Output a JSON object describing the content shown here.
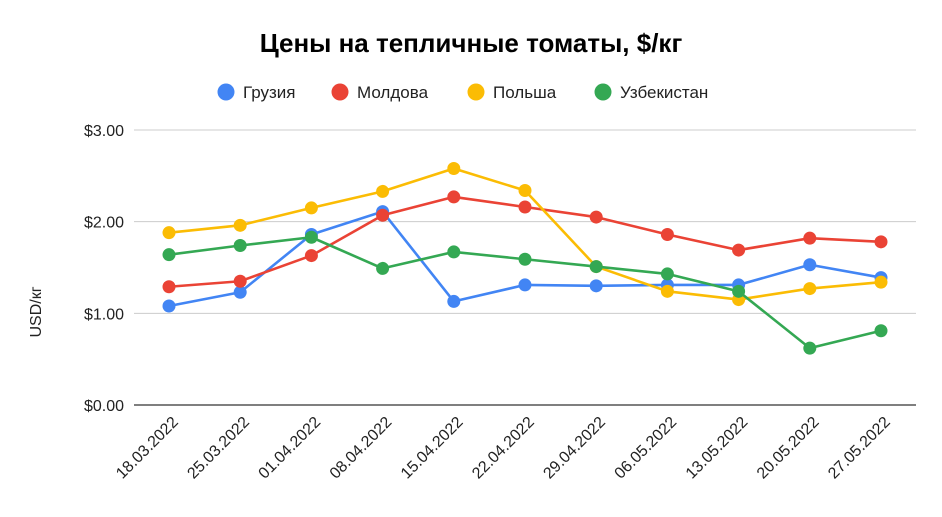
{
  "chart_data": {
    "type": "line",
    "title": "Цены на тепличные томаты, $/кг",
    "ylabel": "USD/кг",
    "xlabel": "",
    "categories": [
      "18.03.2022",
      "25.03.2022",
      "01.04.2022",
      "08.04.2022",
      "15.04.2022",
      "22.04.2022",
      "29.04.2022",
      "06.05.2022",
      "13.05.2022",
      "20.05.2022",
      "27.05.2022"
    ],
    "ylim": [
      0,
      3
    ],
    "yticks": [
      "$0.00",
      "$1.00",
      "$2.00",
      "$3.00"
    ],
    "grid": true,
    "legend_position": "top",
    "series": [
      {
        "name": "Грузия",
        "color": "#4285F4",
        "values": [
          1.08,
          1.23,
          1.86,
          2.11,
          1.13,
          1.31,
          1.3,
          1.31,
          1.31,
          1.53,
          1.39
        ]
      },
      {
        "name": "Молдова",
        "color": "#EA4335",
        "values": [
          1.29,
          1.35,
          1.63,
          2.07,
          2.27,
          2.16,
          2.05,
          1.86,
          1.69,
          1.82,
          1.78
        ]
      },
      {
        "name": "Польша",
        "color": "#FBBC04",
        "values": [
          1.88,
          1.96,
          2.15,
          2.33,
          2.58,
          2.34,
          1.51,
          1.24,
          1.15,
          1.27,
          1.34
        ]
      },
      {
        "name": "Узбекистан",
        "color": "#34A853",
        "values": [
          1.64,
          1.74,
          1.83,
          1.49,
          1.67,
          1.59,
          1.51,
          1.43,
          1.24,
          0.62,
          0.81
        ]
      }
    ]
  }
}
